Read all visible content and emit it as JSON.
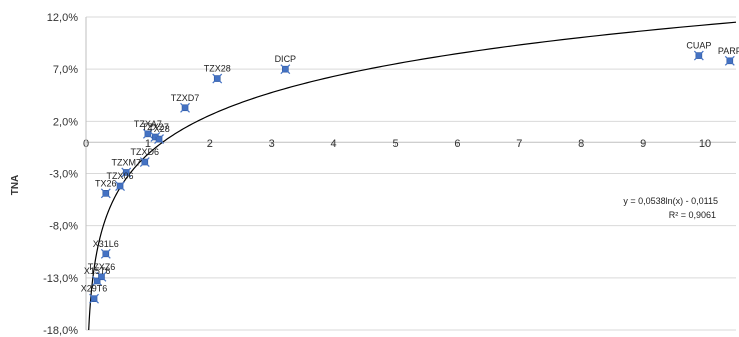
{
  "chart_data": {
    "type": "scatter",
    "title": "",
    "xlabel": "",
    "ylabel": "TNA",
    "xlim": [
      0,
      10.5
    ],
    "ylim": [
      -18.0,
      12.0
    ],
    "grid": "horizontal",
    "marker_color": "#4472C4",
    "trendline_color": "#000000",
    "x_ticks": [
      "0",
      "1",
      "2",
      "3",
      "4",
      "5",
      "6",
      "7",
      "8",
      "9",
      "10"
    ],
    "y_ticks": [
      {
        "value": 12.0,
        "label": "12,0%"
      },
      {
        "value": 7.0,
        "label": "7,0%"
      },
      {
        "value": 2.0,
        "label": "2,0%"
      },
      {
        "value": -3.0,
        "label": "-3,0%"
      },
      {
        "value": -8.0,
        "label": "-8,0%"
      },
      {
        "value": -13.0,
        "label": "-13,0%"
      },
      {
        "value": -18.0,
        "label": "-18,0%"
      }
    ],
    "points": [
      {
        "label": "X29T6",
        "x": 0.13,
        "y": -15.0
      },
      {
        "label": "X15T6",
        "x": 0.18,
        "y": -13.3
      },
      {
        "label": "TZXZ6",
        "x": 0.25,
        "y": -12.9
      },
      {
        "label": "X31L6",
        "x": 0.32,
        "y": -10.7
      },
      {
        "label": "TX26",
        "x": 0.32,
        "y": -4.9
      },
      {
        "label": "TZX06",
        "x": 0.55,
        "y": -4.2
      },
      {
        "label": "TZXM7",
        "x": 0.65,
        "y": -2.9
      },
      {
        "label": "TZXD6",
        "x": 0.95,
        "y": -1.9
      },
      {
        "label": "TZXA7",
        "x": 1.0,
        "y": 0.8
      },
      {
        "label": "TZX27",
        "x": 1.12,
        "y": 0.5
      },
      {
        "label": "TX28",
        "x": 1.18,
        "y": 0.3
      },
      {
        "label": "TZXD7",
        "x": 1.6,
        "y": 3.3
      },
      {
        "label": "TZX28",
        "x": 2.12,
        "y": 6.1
      },
      {
        "label": "DICP",
        "x": 3.22,
        "y": 7.0
      },
      {
        "label": "CUAP",
        "x": 9.9,
        "y": 8.3
      },
      {
        "label": "PARP",
        "x": 10.4,
        "y": 7.8
      }
    ],
    "trendline": {
      "type": "logarithmic",
      "a": 0.0538,
      "b": -0.0115,
      "equation": "y = 0,0538ln(x) - 0,0115",
      "r_squared": "R² = 0,9061"
    }
  }
}
